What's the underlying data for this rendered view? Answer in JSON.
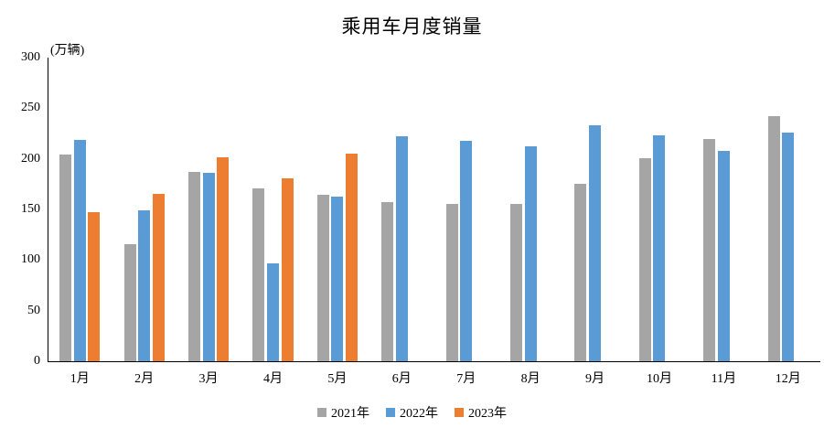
{
  "chart_data": {
    "type": "bar",
    "title": "乘用车月度销量",
    "unit_label": "(万辆)",
    "categories": [
      "1月",
      "2月",
      "3月",
      "4月",
      "5月",
      "6月",
      "7月",
      "8月",
      "9月",
      "10月",
      "11月",
      "12月"
    ],
    "series": [
      {
        "name": "2021年",
        "color": "#A5A5A5",
        "values": [
          204.5,
          115.6,
          187.4,
          170.4,
          164.6,
          156.9,
          155.1,
          155.2,
          175.1,
          200.7,
          219.2,
          242.2
        ]
      },
      {
        "name": "2022年",
        "color": "#5B9BD5",
        "values": [
          218.6,
          148.7,
          186.4,
          96.5,
          162.3,
          222.2,
          217.4,
          212.5,
          233.2,
          223.1,
          207.5,
          226.3
        ]
      },
      {
        "name": "2023年",
        "color": "#ED7D31",
        "values": [
          146.9,
          165.3,
          201.7,
          181.1,
          205.1,
          null,
          null,
          null,
          null,
          null,
          null,
          null
        ]
      }
    ],
    "xlabel": "",
    "ylabel": "万辆",
    "ylim": [
      0,
      300
    ],
    "yticks": [
      0,
      50,
      100,
      150,
      200,
      250,
      300
    ],
    "grid": false,
    "legend_position": "bottom",
    "axis_color": "#000000"
  }
}
